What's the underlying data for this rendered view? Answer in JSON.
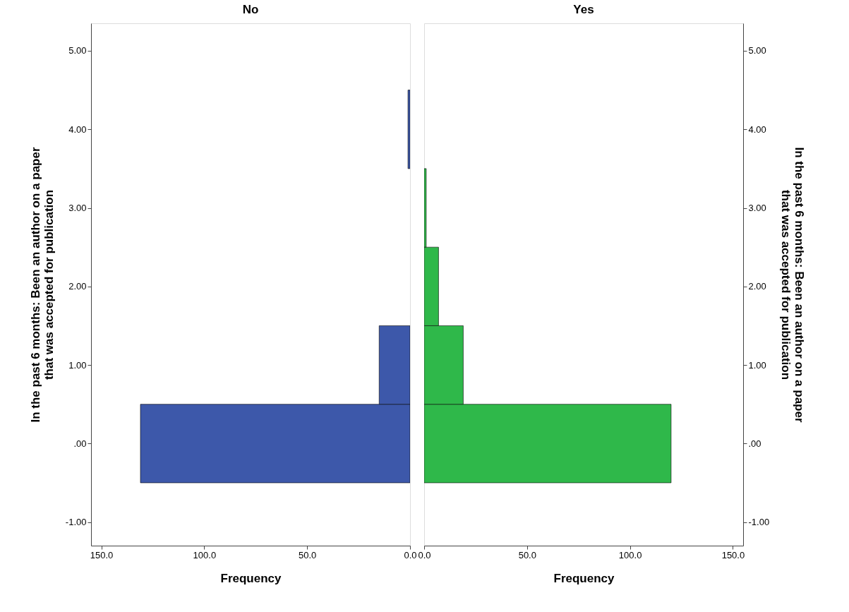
{
  "chart_data": [
    {
      "type": "histogram",
      "orientation": "horizontal",
      "title": "No",
      "xlabel": "Frequency",
      "ylabel": "In the past 6 months: Been an author on a paper that was accepted for publication",
      "bins": [
        -0.5,
        0.5,
        1.5,
        2.5,
        3.5,
        4.5
      ],
      "series": [
        {
          "color": "#3d58aa",
          "values": [
            131,
            15,
            0,
            0,
            1
          ]
        }
      ],
      "xlim": [
        155,
        0
      ],
      "xticks": [
        {
          "value": 150,
          "label": "150.0"
        },
        {
          "value": 100,
          "label": "100.0"
        },
        {
          "value": 50,
          "label": "50.0"
        },
        {
          "value": 0,
          "label": "0.0"
        }
      ],
      "ylim": [
        -1.3,
        5.35
      ],
      "yticks": [
        {
          "value": -1,
          "label": "-1.00"
        },
        {
          "value": 0,
          "label": ".00"
        },
        {
          "value": 1,
          "label": "1.00"
        },
        {
          "value": 2,
          "label": "2.00"
        },
        {
          "value": 3,
          "label": "3.00"
        },
        {
          "value": 4,
          "label": "4.00"
        },
        {
          "value": 5,
          "label": "5.00"
        }
      ]
    },
    {
      "type": "histogram",
      "orientation": "horizontal",
      "title": "Yes",
      "xlabel": "Frequency",
      "ylabel": "In the past 6 months: Been an author on a paper that was accepted for publication",
      "bins": [
        -0.5,
        0.5,
        1.5,
        2.5,
        3.5,
        4.5
      ],
      "series": [
        {
          "color": "#2fb84a",
          "values": [
            120,
            19,
            7,
            1,
            0
          ]
        }
      ],
      "xlim": [
        0,
        155
      ],
      "xticks": [
        {
          "value": 0,
          "label": "0.0"
        },
        {
          "value": 50,
          "label": "50.0"
        },
        {
          "value": 100,
          "label": "100.0"
        },
        {
          "value": 150,
          "label": "150.0"
        }
      ],
      "ylim": [
        -1.3,
        5.35
      ],
      "yticks": [
        {
          "value": -1,
          "label": "-1.00"
        },
        {
          "value": 0,
          "label": ".00"
        },
        {
          "value": 1,
          "label": "1.00"
        },
        {
          "value": 2,
          "label": "2.00"
        },
        {
          "value": 3,
          "label": "3.00"
        },
        {
          "value": 4,
          "label": "4.00"
        },
        {
          "value": 5,
          "label": "5.00"
        }
      ]
    }
  ]
}
